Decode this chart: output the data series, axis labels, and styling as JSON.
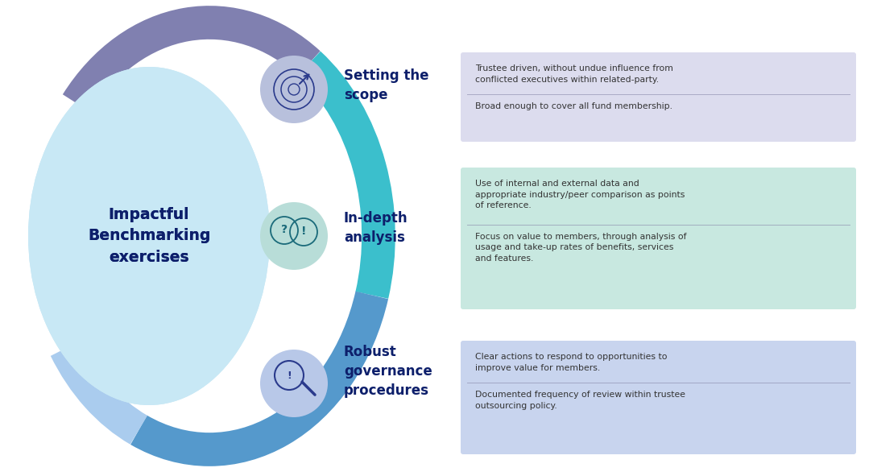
{
  "title_text": "Impactful\nBenchmarking\nexercises",
  "title_color": "#0d1f6b",
  "bg_color": "#ffffff",
  "center_ellipse_color": "#c8e8f5",
  "arc_colors": {
    "top_purple": "#8080b0",
    "teal": "#3bbfcc",
    "blue": "#5599cc",
    "light_blue": "#aaccee"
  },
  "sections": [
    {
      "label": "Setting the\nscope",
      "icon_bg": "#b8c0dc",
      "icon_color": "#2a3a8c",
      "box_color": "#dcdcee",
      "bullet1": "Trustee driven, without undue influence from\nconflicted executives within related-party.",
      "bullet2": "Broad enough to cover all fund membership."
    },
    {
      "label": "In-depth\nanalysis",
      "icon_bg": "#b8ddd8",
      "icon_color": "#1a6a7a",
      "box_color": "#c8e8e0",
      "bullet1": "Use of internal and external data and\nappropriate industry/peer comparison as points\nof reference.",
      "bullet2": "Focus on value to members, through analysis of\nusage and take-up rates of benefits, services\nand features."
    },
    {
      "label": "Robust\ngovernance\nprocedures",
      "icon_bg": "#b8c8e8",
      "icon_color": "#2a3a8c",
      "box_color": "#c8d4ee",
      "bullet1": "Clear actions to respond to opportunities to\nimprove value for members.",
      "bullet2": "Documented frequency of review within trustee\noutsourcing policy."
    }
  ],
  "label_color": "#0d1f6b",
  "text_color": "#333333",
  "separator_color": "#8888aa"
}
